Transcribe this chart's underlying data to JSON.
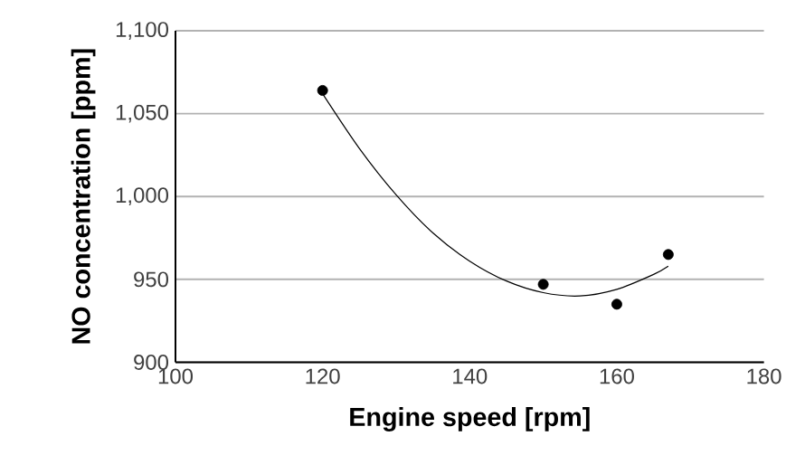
{
  "chart_data": {
    "type": "scatter",
    "xlabel": "Engine speed  [rpm]",
    "ylabel": "NO concentration  [ppm]",
    "xlim": [
      100,
      180
    ],
    "xticks": [
      100,
      120,
      140,
      160,
      180
    ],
    "ylim": [
      900,
      1100
    ],
    "yticks": [
      {
        "value": 900,
        "label": "900"
      },
      {
        "value": 950,
        "label": "950"
      },
      {
        "value": 1000,
        "label": "1,000"
      },
      {
        "value": 1050,
        "label": "1,050"
      },
      {
        "value": 1100,
        "label": "1,100"
      }
    ],
    "grid": "y",
    "marker": "circle",
    "series": [
      {
        "type": "line",
        "color": "#000000",
        "marker": "none",
        "x": [
          120,
          125,
          130,
          135,
          140,
          145,
          150,
          155,
          160,
          165,
          167
        ],
        "values": [
          1062,
          1029,
          1001,
          978,
          961,
          949,
          942,
          940,
          944,
          953,
          958
        ]
      },
      {
        "color": "#000000",
        "x": [
          120,
          150,
          160,
          167
        ],
        "values": [
          1064,
          947,
          935,
          965
        ]
      }
    ]
  }
}
